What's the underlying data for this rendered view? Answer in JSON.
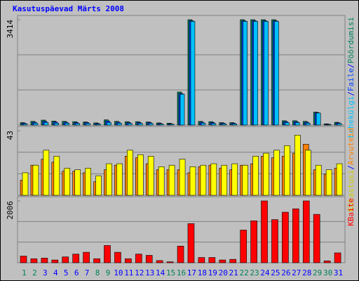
{
  "chart_data": {
    "type": "webalizer-daily",
    "title": "Kasutuspäevad Märts 2008",
    "separator": "/",
    "categories": [
      "1",
      "2",
      "3",
      "4",
      "5",
      "6",
      "7",
      "8",
      "9",
      "10",
      "11",
      "12",
      "13",
      "14",
      "15",
      "16",
      "17",
      "18",
      "19",
      "20",
      "21",
      "22",
      "23",
      "24",
      "25",
      "26",
      "27",
      "28",
      "29",
      "30",
      "31"
    ],
    "category_colors": [
      "#00805c",
      "#00805c",
      "#0000ff",
      "#0000ff",
      "#0000ff",
      "#0000ff",
      "#0000ff",
      "#00805c",
      "#00805c",
      "#0000ff",
      "#0000ff",
      "#0000ff",
      "#0000ff",
      "#0000ff",
      "#00805c",
      "#00805c",
      "#0000ff",
      "#0000ff",
      "#0000ff",
      "#0000ff",
      "#0000ff",
      "#00805c",
      "#00805c",
      "#0000ff",
      "#0000ff",
      "#0000ff",
      "#0000ff",
      "#0000ff",
      "#00805c",
      "#00805c",
      "#0000ff"
    ],
    "panels": [
      {
        "ylim": [
          0,
          3414
        ],
        "yticks": [
          3414
        ],
        "series": [
          {
            "name": "Pöördumisi",
            "color": "#00805c",
            "values": [
              80,
              120,
              160,
              130,
              120,
              110,
              100,
              70,
              170,
              120,
              110,
              110,
              100,
              70,
              60,
              1070,
              3414,
              120,
              110,
              80,
              80,
              3414,
              3414,
              3414,
              3414,
              140,
              140,
              120,
              420,
              40,
              90
            ]
          },
          {
            "name": "Faile",
            "color": "#0040ff",
            "values": [
              60,
              90,
              120,
              100,
              90,
              80,
              80,
              50,
              130,
              90,
              80,
              80,
              80,
              50,
              40,
              1020,
              3380,
              90,
              80,
              60,
              60,
              3380,
              3380,
              3380,
              3380,
              110,
              110,
              90,
              400,
              30,
              70
            ]
          },
          {
            "name": "Lehekülgi",
            "color": "#00c0ff",
            "values": [
              40,
              60,
              80,
              60,
              60,
              50,
              50,
              30,
              80,
              60,
              50,
              50,
              50,
              30,
              30,
              1000,
              3360,
              60,
              50,
              40,
              40,
              3360,
              3360,
              3360,
              3360,
              80,
              80,
              60,
              390,
              20,
              50
            ]
          }
        ]
      },
      {
        "ylim": [
          0,
          43
        ],
        "yticks": [
          43
        ],
        "series": [
          {
            "name": "Arvuteid",
            "color": "#ff8000",
            "values": [
              10,
              20,
              24,
              22,
              16,
              16,
              15,
              9,
              17,
              20,
              26,
              25,
              21,
              17,
              17,
              17,
              15,
              19,
              20,
              18,
              17,
              20,
              21,
              26,
              25,
              26,
              28,
              34,
              17,
              14,
              18
            ]
          },
          {
            "name": "Külastusi",
            "color": "#ffff00",
            "values": [
              15,
              20,
              30,
              26,
              18,
              17,
              18,
              13,
              21,
              21,
              30,
              27,
              26,
              19,
              20,
              24,
              19,
              20,
              21,
              20,
              21,
              20,
              26,
              28,
              30,
              33,
              40,
              30,
              20,
              17,
              21
            ]
          }
        ]
      },
      {
        "ylim": [
          0,
          2006
        ],
        "yticks": [
          2006
        ],
        "series": [
          {
            "name": "KBaite",
            "color": "#ff0000",
            "values": [
              215,
              130,
              150,
              90,
              190,
              280,
              340,
              130,
              560,
              340,
              130,
              280,
              240,
              70,
              30,
              540,
              1270,
              170,
              170,
              90,
              110,
              1060,
              1360,
              2006,
              1400,
              1640,
              1750,
              2006,
              1570,
              60,
              320
            ]
          }
        ]
      }
    ]
  }
}
